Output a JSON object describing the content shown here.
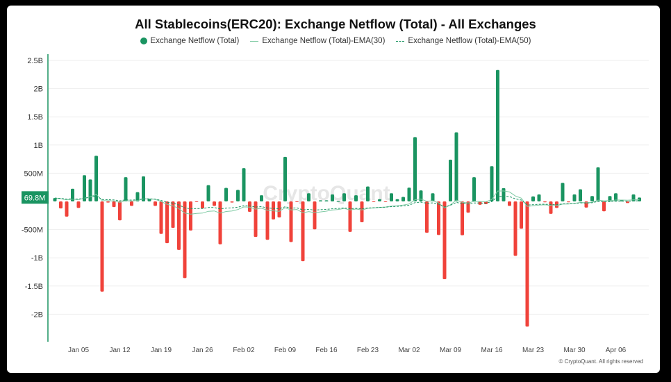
{
  "chart_data": {
    "type": "bar",
    "title": "All Stablecoins(ERC20): Exchange Netflow (Total) - All Exchanges",
    "legend": [
      "Exchange Netflow (Total)",
      "Exchange Netflow (Total)-EMA(30)",
      "Exchange Netflow (Total)-EMA(50)"
    ],
    "legend_position": "top",
    "x": [
      "Jan 01",
      "Jan 02",
      "Jan 03",
      "Jan 04",
      "Jan 05",
      "Jan 06",
      "Jan 07",
      "Jan 08",
      "Jan 09",
      "Jan 10",
      "Jan 11",
      "Jan 12",
      "Jan 13",
      "Jan 14",
      "Jan 15",
      "Jan 16",
      "Jan 17",
      "Jan 18",
      "Jan 19",
      "Jan 20",
      "Jan 21",
      "Jan 22",
      "Jan 23",
      "Jan 24",
      "Jan 25",
      "Jan 26",
      "Jan 27",
      "Jan 28",
      "Jan 29",
      "Jan 30",
      "Jan 31",
      "Feb 01",
      "Feb 02",
      "Feb 03",
      "Feb 04",
      "Feb 05",
      "Feb 06",
      "Feb 07",
      "Feb 08",
      "Feb 09",
      "Feb 10",
      "Feb 11",
      "Feb 12",
      "Feb 13",
      "Feb 14",
      "Feb 15",
      "Feb 16",
      "Feb 17",
      "Feb 18",
      "Feb 19",
      "Feb 20",
      "Feb 21",
      "Feb 22",
      "Feb 23",
      "Feb 24",
      "Feb 25",
      "Feb 26",
      "Feb 27",
      "Feb 28",
      "Mar 01",
      "Mar 02",
      "Mar 03",
      "Mar 04",
      "Mar 05",
      "Mar 06",
      "Mar 07",
      "Mar 08",
      "Mar 09",
      "Mar 10",
      "Mar 11",
      "Mar 12",
      "Mar 13",
      "Mar 14",
      "Mar 15",
      "Mar 16",
      "Mar 17",
      "Mar 18",
      "Mar 19",
      "Mar 20",
      "Mar 21",
      "Mar 22",
      "Mar 23",
      "Mar 24",
      "Mar 25",
      "Mar 26",
      "Mar 27",
      "Mar 28",
      "Mar 29",
      "Mar 30",
      "Mar 31",
      "Apr 01",
      "Apr 02",
      "Apr 03",
      "Apr 04",
      "Apr 05",
      "Apr 06",
      "Apr 07",
      "Apr 08",
      "Apr 09",
      "Apr 10"
    ],
    "series": [
      {
        "name": "Exchange Netflow (Total)",
        "unit": "USD",
        "values": [
          60000000.0,
          -125000000.0,
          -270000000.0,
          225000000.0,
          -115000000.0,
          465000000.0,
          390000000.0,
          810000000.0,
          -1600000000.0,
          -20000000.0,
          -100000000.0,
          -335000000.0,
          430000000.0,
          -80000000.0,
          165000000.0,
          445000000.0,
          50000000.0,
          -80000000.0,
          -575000000.0,
          -740000000.0,
          -470000000.0,
          -860000000.0,
          -1360000000.0,
          -515000000.0,
          -10000000.0,
          -125000000.0,
          290000000.0,
          -80000000.0,
          -760000000.0,
          240000000.0,
          -20000000.0,
          205000000.0,
          590000000.0,
          -185000000.0,
          -630000000.0,
          110000000.0,
          -680000000.0,
          -320000000.0,
          -285000000.0,
          790000000.0,
          -720000000.0,
          -10000000.0,
          -1060000000.0,
          145000000.0,
          -495000000.0,
          20000000.0,
          20000000.0,
          125000000.0,
          0,
          145000000.0,
          -540000000.0,
          110000000.0,
          -370000000.0,
          265000000.0,
          -10000000.0,
          40000000.0,
          -10000000.0,
          145000000.0,
          40000000.0,
          80000000.0,
          245000000.0,
          1140000000.0,
          195000000.0,
          -555000000.0,
          145000000.0,
          -595000000.0,
          -1380000000.0,
          740000000.0,
          1225000000.0,
          -600000000.0,
          -200000000.0,
          430000000.0,
          -60000000.0,
          -50000000.0,
          625000000.0,
          2330000000.0,
          235000000.0,
          -80000000.0,
          -965000000.0,
          -485000000.0,
          -2220000000.0,
          90000000.0,
          125000000.0,
          -15000000.0,
          -220000000.0,
          -115000000.0,
          330000000.0,
          -15000000.0,
          125000000.0,
          215000000.0,
          -110000000.0,
          95000000.0,
          605000000.0,
          -175000000.0,
          95000000.0,
          145000000.0,
          30000000.0,
          -30000000.0,
          125000000.0,
          69800000.0
        ]
      }
    ],
    "x_ticks": [
      "Jan 05",
      "Jan 12",
      "Jan 19",
      "Jan 26",
      "Feb 02",
      "Feb 09",
      "Feb 16",
      "Feb 23",
      "Mar 02",
      "Mar 09",
      "Mar 16",
      "Mar 23",
      "Mar 30",
      "Apr 06"
    ],
    "y_ticks": [
      {
        "label": "2.5B",
        "value": 2500000000.0
      },
      {
        "label": "2B",
        "value": 2000000000.0
      },
      {
        "label": "1.5B",
        "value": 1500000000.0
      },
      {
        "label": "1B",
        "value": 1000000000.0
      },
      {
        "label": "500M",
        "value": 500000000.0
      },
      {
        "label": "-500M",
        "value": -500000000.0
      },
      {
        "label": "-1B",
        "value": -1000000000.0
      },
      {
        "label": "-1.5B",
        "value": -1500000000.0
      },
      {
        "label": "-2B",
        "value": -2000000000.0
      }
    ],
    "ylim": [
      -2500000000.0,
      2500000000.0
    ],
    "grid": true,
    "last_value_label": "69.8M",
    "colors": {
      "positive": "#1a9461",
      "negative": "#f0423a",
      "ema30": "#7cc9a2",
      "ema50": "#1a9461"
    }
  },
  "watermark": "CryptoQuant",
  "copyright": "© CryptoQuant. All rights reserved"
}
